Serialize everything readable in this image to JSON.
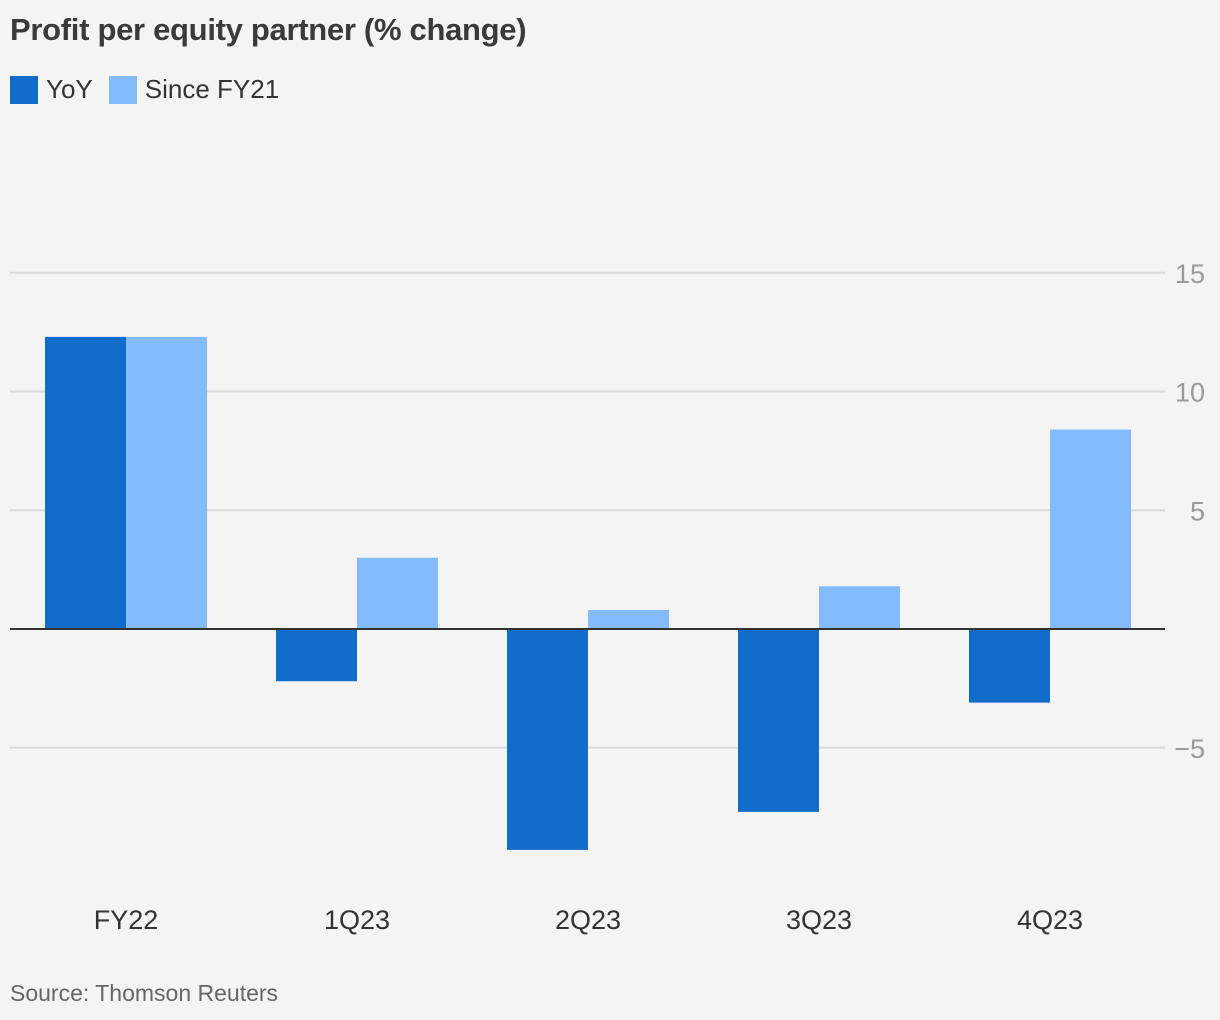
{
  "chart_data": {
    "type": "bar",
    "title": "Profit per equity partner (% change)",
    "categories": [
      "FY22",
      "1Q23",
      "2Q23",
      "3Q23",
      "4Q23"
    ],
    "series": [
      {
        "name": "YoY",
        "values": [
          12.3,
          -2.2,
          -9.3,
          -7.7,
          -3.1
        ],
        "color": "#116dc9"
      },
      {
        "name": "Since FY21",
        "values": [
          12.3,
          3.0,
          0.8,
          1.8,
          8.4
        ],
        "color": "#83bbfd"
      }
    ],
    "y_ticks": [
      15,
      10,
      5,
      -5
    ],
    "y_tick_labels": [
      "15",
      "10",
      "5",
      "−5"
    ],
    "ylim": [
      -10.5,
      15
    ],
    "y_axis_side": "right",
    "grid": true,
    "legend_position": "top-left",
    "source": "Source: Thomson Reuters"
  }
}
